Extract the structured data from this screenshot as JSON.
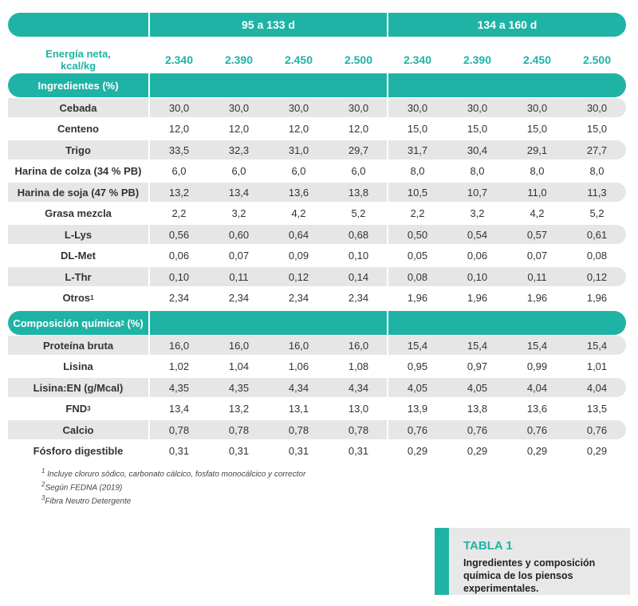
{
  "header": {
    "group1": "95 a 133 d",
    "group2": "134 a 160 d"
  },
  "energy": {
    "label_line1": "Energía neta,",
    "label_line2": "kcal/kg",
    "values": [
      "2.340",
      "2.390",
      "2.450",
      "2.500",
      "2.340",
      "2.390",
      "2.450",
      "2.500"
    ]
  },
  "sections": {
    "ingredients": "Ingredientes (%)",
    "composition_prefix": "Composición química",
    "composition_sup": "2",
    "composition_suffix": " (%)"
  },
  "ingredients": [
    {
      "name": "Cebada",
      "sup": "",
      "values": [
        "30,0",
        "30,0",
        "30,0",
        "30,0",
        "30,0",
        "30,0",
        "30,0",
        "30,0"
      ]
    },
    {
      "name": "Centeno",
      "sup": "",
      "values": [
        "12,0",
        "12,0",
        "12,0",
        "12,0",
        "15,0",
        "15,0",
        "15,0",
        "15,0"
      ]
    },
    {
      "name": "Trigo",
      "sup": "",
      "values": [
        "33,5",
        "32,3",
        "31,0",
        "29,7",
        "31,7",
        "30,4",
        "29,1",
        "27,7"
      ]
    },
    {
      "name": "Harina de colza (34 % PB)",
      "sup": "",
      "values": [
        "6,0",
        "6,0",
        "6,0",
        "6,0",
        "8,0",
        "8,0",
        "8,0",
        "8,0"
      ]
    },
    {
      "name": "Harina de soja (47 % PB)",
      "sup": "",
      "values": [
        "13,2",
        "13,4",
        "13,6",
        "13,8",
        "10,5",
        "10,7",
        "11,0",
        "11,3"
      ]
    },
    {
      "name": "Grasa mezcla",
      "sup": "",
      "values": [
        "2,2",
        "3,2",
        "4,2",
        "5,2",
        "2,2",
        "3,2",
        "4,2",
        "5,2"
      ]
    },
    {
      "name": "L-Lys",
      "sup": "",
      "values": [
        "0,56",
        "0,60",
        "0,64",
        "0,68",
        "0,50",
        "0,54",
        "0,57",
        "0,61"
      ]
    },
    {
      "name": "DL-Met",
      "sup": "",
      "values": [
        "0,06",
        "0,07",
        "0,09",
        "0,10",
        "0,05",
        "0,06",
        "0,07",
        "0,08"
      ]
    },
    {
      "name": "L-Thr",
      "sup": "",
      "values": [
        "0,10",
        "0,11",
        "0,12",
        "0,14",
        "0,08",
        "0,10",
        "0,11",
        "0,12"
      ]
    },
    {
      "name": "Otros",
      "sup": "1",
      "values": [
        "2,34",
        "2,34",
        "2,34",
        "2,34",
        "1,96",
        "1,96",
        "1,96",
        "1,96"
      ]
    }
  ],
  "composition": [
    {
      "name": "Proteína bruta",
      "sup": "",
      "values": [
        "16,0",
        "16,0",
        "16,0",
        "16,0",
        "15,4",
        "15,4",
        "15,4",
        "15,4"
      ]
    },
    {
      "name": "Lisina",
      "sup": "",
      "values": [
        "1,02",
        "1,04",
        "1,06",
        "1,08",
        "0,95",
        "0,97",
        "0,99",
        "1,01"
      ]
    },
    {
      "name": "Lisina:EN (g/Mcal)",
      "sup": "",
      "values": [
        "4,35",
        "4,35",
        "4,34",
        "4,34",
        "4,05",
        "4,05",
        "4,04",
        "4,04"
      ]
    },
    {
      "name": "FND",
      "sup": "3",
      "values": [
        "13,4",
        "13,2",
        "13,1",
        "13,0",
        "13,9",
        "13,8",
        "13,6",
        "13,5"
      ]
    },
    {
      "name": "Calcio",
      "sup": "",
      "values": [
        "0,78",
        "0,78",
        "0,78",
        "0,78",
        "0,76",
        "0,76",
        "0,76",
        "0,76"
      ]
    },
    {
      "name": "Fósforo digestible",
      "sup": "",
      "values": [
        "0,31",
        "0,31",
        "0,31",
        "0,31",
        "0,29",
        "0,29",
        "0,29",
        "0,29"
      ]
    }
  ],
  "footnotes": [
    {
      "sup": "1",
      "text": " Incluye cloruro sódico, carbonato cálcico, fosfato monocálcico y corrector"
    },
    {
      "sup": "2",
      "text": "Según FEDNA (2019)"
    },
    {
      "sup": "3",
      "text": "Fibra Neutro Detergente"
    }
  ],
  "caption": {
    "label": "TABLA 1",
    "text": "Ingredientes y composición química de los piensos experimentales."
  }
}
